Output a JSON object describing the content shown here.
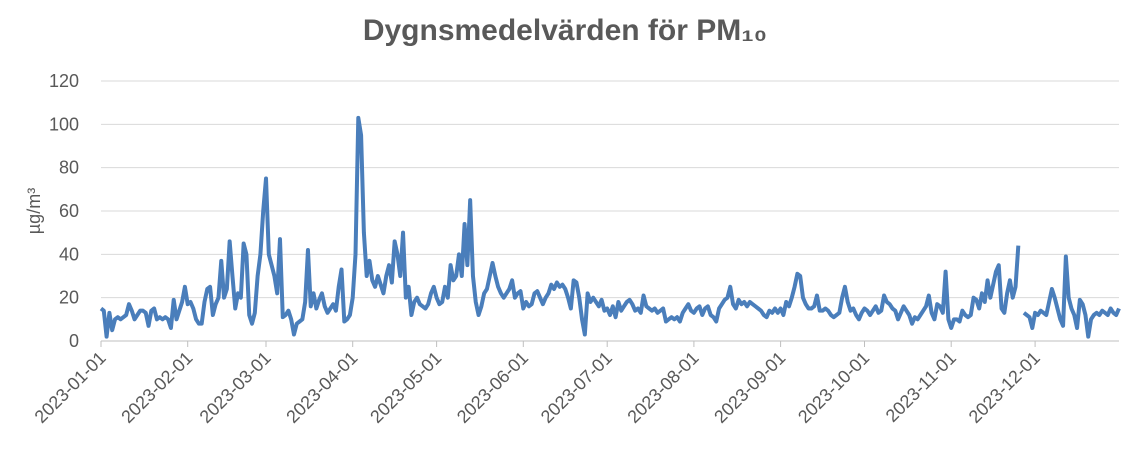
{
  "chart_data": {
    "type": "line",
    "title": "Dygnsmedelvärden för PM₁₀",
    "ylabel": "µg/m³",
    "x": [
      "2023-01-01",
      "2023-01-02",
      "2023-01-03",
      "2023-01-04",
      "2023-01-05",
      "2023-01-06",
      "2023-01-07",
      "2023-01-08",
      "2023-01-09",
      "2023-01-10",
      "2023-01-11",
      "2023-01-12",
      "2023-01-13",
      "2023-01-14",
      "2023-01-15",
      "2023-01-16",
      "2023-01-17",
      "2023-01-18",
      "2023-01-19",
      "2023-01-20",
      "2023-01-21",
      "2023-01-22",
      "2023-01-23",
      "2023-01-24",
      "2023-01-25",
      "2023-01-26",
      "2023-01-27",
      "2023-01-28",
      "2023-01-29",
      "2023-01-30",
      "2023-01-31",
      "2023-02-01",
      "2023-02-02",
      "2023-02-03",
      "2023-02-04",
      "2023-02-05",
      "2023-02-06",
      "2023-02-07",
      "2023-02-08",
      "2023-02-09",
      "2023-02-10",
      "2023-02-11",
      "2023-02-12",
      "2023-02-13",
      "2023-02-14",
      "2023-02-15",
      "2023-02-16",
      "2023-02-17",
      "2023-02-18",
      "2023-02-19",
      "2023-02-20",
      "2023-02-21",
      "2023-02-22",
      "2023-02-23",
      "2023-02-24",
      "2023-02-25",
      "2023-02-26",
      "2023-02-27",
      "2023-02-28",
      "2023-03-01",
      "2023-03-02",
      "2023-03-03",
      "2023-03-04",
      "2023-03-05",
      "2023-03-06",
      "2023-03-07",
      "2023-03-08",
      "2023-03-09",
      "2023-03-10",
      "2023-03-11",
      "2023-03-12",
      "2023-03-13",
      "2023-03-14",
      "2023-03-15",
      "2023-03-16",
      "2023-03-17",
      "2023-03-18",
      "2023-03-19",
      "2023-03-20",
      "2023-03-21",
      "2023-03-22",
      "2023-03-23",
      "2023-03-24",
      "2023-03-25",
      "2023-03-26",
      "2023-03-27",
      "2023-03-28",
      "2023-03-29",
      "2023-03-30",
      "2023-03-31",
      "2023-04-01",
      "2023-04-02",
      "2023-04-03",
      "2023-04-04",
      "2023-04-05",
      "2023-04-06",
      "2023-04-07",
      "2023-04-08",
      "2023-04-09",
      "2023-04-10",
      "2023-04-11",
      "2023-04-12",
      "2023-04-13",
      "2023-04-14",
      "2023-04-15",
      "2023-04-16",
      "2023-04-17",
      "2023-04-18",
      "2023-04-19",
      "2023-04-20",
      "2023-04-21",
      "2023-04-22",
      "2023-04-23",
      "2023-04-24",
      "2023-04-25",
      "2023-04-26",
      "2023-04-27",
      "2023-04-28",
      "2023-04-29",
      "2023-04-30",
      "2023-05-01",
      "2023-05-02",
      "2023-05-03",
      "2023-05-04",
      "2023-05-05",
      "2023-05-06",
      "2023-05-07",
      "2023-05-08",
      "2023-05-09",
      "2023-05-10",
      "2023-05-11",
      "2023-05-12",
      "2023-05-13",
      "2023-05-14",
      "2023-05-15",
      "2023-05-16",
      "2023-05-17",
      "2023-05-18",
      "2023-05-19",
      "2023-05-20",
      "2023-05-21",
      "2023-05-22",
      "2023-05-23",
      "2023-05-24",
      "2023-05-25",
      "2023-05-26",
      "2023-05-27",
      "2023-05-28",
      "2023-05-29",
      "2023-05-30",
      "2023-05-31",
      "2023-06-01",
      "2023-06-02",
      "2023-06-03",
      "2023-06-04",
      "2023-06-05",
      "2023-06-06",
      "2023-06-07",
      "2023-06-08",
      "2023-06-09",
      "2023-06-10",
      "2023-06-11",
      "2023-06-12",
      "2023-06-13",
      "2023-06-14",
      "2023-06-15",
      "2023-06-16",
      "2023-06-17",
      "2023-06-18",
      "2023-06-19",
      "2023-06-20",
      "2023-06-21",
      "2023-06-22",
      "2023-06-23",
      "2023-06-24",
      "2023-06-25",
      "2023-06-26",
      "2023-06-27",
      "2023-06-28",
      "2023-06-29",
      "2023-06-30",
      "2023-07-01",
      "2023-07-02",
      "2023-07-03",
      "2023-07-04",
      "2023-07-05",
      "2023-07-06",
      "2023-07-07",
      "2023-07-08",
      "2023-07-09",
      "2023-07-10",
      "2023-07-11",
      "2023-07-12",
      "2023-07-13",
      "2023-07-14",
      "2023-07-15",
      "2023-07-16",
      "2023-07-17",
      "2023-07-18",
      "2023-07-19",
      "2023-07-20",
      "2023-07-21",
      "2023-07-22",
      "2023-07-23",
      "2023-07-24",
      "2023-07-25",
      "2023-07-26",
      "2023-07-27",
      "2023-07-28",
      "2023-07-29",
      "2023-07-30",
      "2023-07-31",
      "2023-08-01",
      "2023-08-02",
      "2023-08-03",
      "2023-08-04",
      "2023-08-05",
      "2023-08-06",
      "2023-08-07",
      "2023-08-08",
      "2023-08-09",
      "2023-08-10",
      "2023-08-11",
      "2023-08-12",
      "2023-08-13",
      "2023-08-14",
      "2023-08-15",
      "2023-08-16",
      "2023-08-17",
      "2023-08-18",
      "2023-08-19",
      "2023-08-20",
      "2023-08-21",
      "2023-08-22",
      "2023-08-23",
      "2023-08-24",
      "2023-08-25",
      "2023-08-26",
      "2023-08-27",
      "2023-08-28",
      "2023-08-29",
      "2023-08-30",
      "2023-08-31",
      "2023-09-01",
      "2023-09-02",
      "2023-09-03",
      "2023-09-04",
      "2023-09-05",
      "2023-09-06",
      "2023-09-07",
      "2023-09-08",
      "2023-09-09",
      "2023-09-10",
      "2023-09-11",
      "2023-09-12",
      "2023-09-13",
      "2023-09-14",
      "2023-09-15",
      "2023-09-16",
      "2023-09-17",
      "2023-09-18",
      "2023-09-19",
      "2023-09-20",
      "2023-09-21",
      "2023-09-22",
      "2023-09-23",
      "2023-09-24",
      "2023-09-25",
      "2023-09-26",
      "2023-09-27",
      "2023-09-28",
      "2023-09-29",
      "2023-09-30",
      "2023-10-01",
      "2023-10-02",
      "2023-10-03",
      "2023-10-04",
      "2023-10-05",
      "2023-10-06",
      "2023-10-07",
      "2023-10-08",
      "2023-10-09",
      "2023-10-10",
      "2023-10-11",
      "2023-10-12",
      "2023-10-13",
      "2023-10-14",
      "2023-10-15",
      "2023-10-16",
      "2023-10-17",
      "2023-10-18",
      "2023-10-19",
      "2023-10-20",
      "2023-10-21",
      "2023-10-22",
      "2023-10-23",
      "2023-10-24",
      "2023-10-25",
      "2023-10-26",
      "2023-10-27",
      "2023-10-28",
      "2023-10-29",
      "2023-10-30",
      "2023-10-31",
      "2023-11-01",
      "2023-11-02",
      "2023-11-03",
      "2023-11-04",
      "2023-11-05",
      "2023-11-06",
      "2023-11-07",
      "2023-11-08",
      "2023-11-09",
      "2023-11-10",
      "2023-11-11",
      "2023-11-12",
      "2023-11-13",
      "2023-11-14",
      "2023-11-15",
      "2023-11-16",
      "2023-11-17",
      "2023-11-18",
      "2023-11-19",
      "2023-11-20",
      "2023-11-21",
      "2023-11-22",
      "2023-11-23",
      "2023-11-24",
      "2023-11-25",
      "2023-11-26",
      "2023-11-27",
      "2023-11-28",
      "2023-11-29",
      "2023-11-30",
      "2023-12-01",
      "2023-12-02",
      "2023-12-03",
      "2023-12-04",
      "2023-12-05",
      "2023-12-06",
      "2023-12-07",
      "2023-12-08",
      "2023-12-09",
      "2023-12-10",
      "2023-12-11",
      "2023-12-12",
      "2023-12-13",
      "2023-12-14",
      "2023-12-15",
      "2023-12-16",
      "2023-12-17",
      "2023-12-18",
      "2023-12-19",
      "2023-12-20",
      "2023-12-21",
      "2023-12-22",
      "2023-12-23",
      "2023-12-24",
      "2023-12-25",
      "2023-12-26",
      "2023-12-27",
      "2023-12-28",
      "2023-12-29",
      "2023-12-30",
      "2023-12-31"
    ],
    "values": [
      15,
      14,
      2,
      13,
      5,
      10,
      11,
      10,
      11,
      12,
      17,
      14,
      10,
      12,
      14,
      14,
      13,
      7,
      14,
      15,
      10,
      11,
      10,
      11,
      10,
      6,
      19,
      10,
      14,
      18,
      25,
      17,
      18,
      15,
      10,
      8,
      8,
      18,
      24,
      25,
      12,
      17,
      20,
      37,
      20,
      24,
      46,
      30,
      15,
      22,
      20,
      45,
      40,
      12,
      8,
      13,
      30,
      40,
      60,
      75,
      40,
      35,
      30,
      22,
      47,
      11,
      12,
      14,
      10,
      3,
      8,
      9,
      10,
      18,
      42,
      16,
      22,
      15,
      19,
      22,
      16,
      13,
      15,
      17,
      14,
      25,
      33,
      9,
      10,
      12,
      20,
      40,
      103,
      95,
      50,
      30,
      37,
      28,
      25,
      30,
      26,
      22,
      30,
      35,
      27,
      46,
      40,
      30,
      50,
      20,
      25,
      12,
      18,
      20,
      17,
      16,
      15,
      17,
      22,
      25,
      20,
      17,
      18,
      25,
      20,
      35,
      28,
      30,
      40,
      30,
      54,
      35,
      65,
      30,
      18,
      12,
      16,
      22,
      24,
      30,
      36,
      30,
      25,
      22,
      20,
      22,
      24,
      28,
      20,
      22,
      23,
      15,
      18,
      16,
      17,
      22,
      23,
      20,
      17,
      20,
      22,
      26,
      24,
      27,
      25,
      26,
      24,
      20,
      15,
      28,
      27,
      20,
      10,
      3,
      22,
      18,
      20,
      18,
      16,
      19,
      14,
      15,
      12,
      16,
      11,
      18,
      14,
      16,
      18,
      19,
      17,
      14,
      15,
      13,
      21,
      16,
      15,
      14,
      15,
      13,
      14,
      15,
      9,
      10,
      11,
      10,
      11,
      9,
      13,
      15,
      17,
      14,
      13,
      15,
      16,
      12,
      15,
      16,
      12,
      11,
      9,
      15,
      17,
      19,
      20,
      25,
      17,
      15,
      19,
      17,
      18,
      16,
      18,
      17,
      16,
      15,
      14,
      12,
      11,
      14,
      13,
      15,
      13,
      15,
      12,
      18,
      16,
      20,
      25,
      31,
      30,
      20,
      17,
      15,
      15,
      16,
      21,
      14,
      14,
      15,
      14,
      12,
      11,
      12,
      13,
      20,
      25,
      18,
      14,
      15,
      12,
      10,
      13,
      15,
      14,
      12,
      14,
      16,
      13,
      14,
      21,
      18,
      17,
      15,
      14,
      10,
      13,
      16,
      14,
      12,
      8,
      11,
      10,
      12,
      14,
      16,
      21,
      13,
      10,
      17,
      16,
      13,
      32,
      10,
      6,
      10,
      10,
      9,
      14,
      12,
      11,
      12,
      20,
      19,
      15,
      22,
      18,
      28,
      20,
      26,
      32,
      35,
      15,
      13,
      22,
      28,
      20,
      25,
      44,
      null,
      13,
      12,
      11,
      6,
      13,
      12,
      14,
      13,
      12,
      18,
      24,
      20,
      15,
      10,
      7,
      39,
      20,
      15,
      12,
      6,
      19,
      17,
      12,
      2,
      10,
      12,
      13,
      12,
      14,
      13,
      12,
      15,
      13,
      12,
      15
    ],
    "color": "#4a7ebb",
    "xlim": [
      "2023-01-01",
      "2023-12-31"
    ],
    "xticks": [
      "2023-01-01",
      "2023-02-01",
      "2023-03-01",
      "2023-04-01",
      "2023-05-01",
      "2023-06-01",
      "2023-07-01",
      "2023-08-01",
      "2023-09-01",
      "2023-10-01",
      "2023-11-01",
      "2023-12-01"
    ],
    "ylim": [
      0,
      120
    ],
    "yticks": [
      0,
      20,
      40,
      60,
      80,
      100,
      120
    ],
    "grid": true
  }
}
